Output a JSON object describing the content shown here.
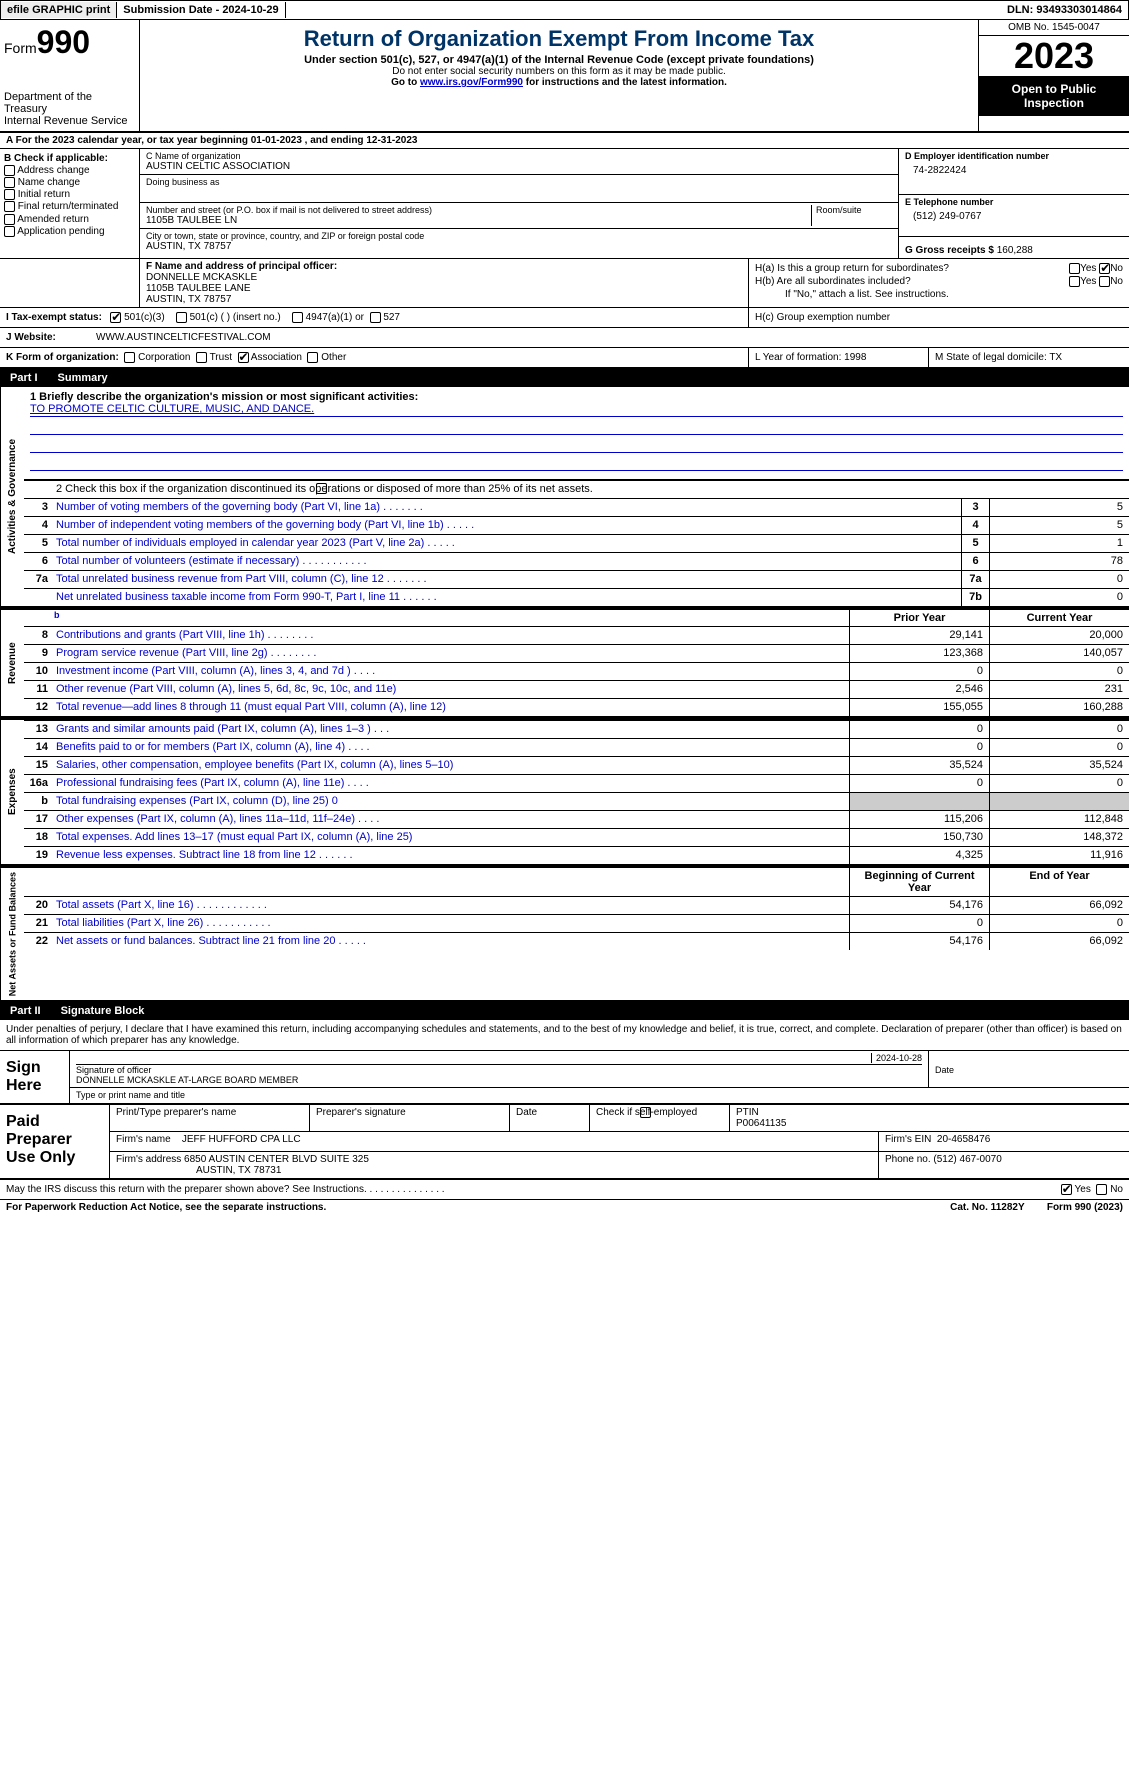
{
  "top": {
    "efile": "efile GRAPHIC print",
    "submission": "Submission Date - 2024-10-29",
    "dln": "DLN: 93493303014864"
  },
  "header": {
    "form_word": "Form",
    "form_num": "990",
    "dept": "Department of the Treasury",
    "irs": "Internal Revenue Service",
    "title": "Return of Organization Exempt From Income Tax",
    "subtitle": "Under section 501(c), 527, or 4947(a)(1) of the Internal Revenue Code (except private foundations)",
    "note1": "Do not enter social security numbers on this form as it may be made public.",
    "note2_pre": "Go to ",
    "note2_link": "www.irs.gov/Form990",
    "note2_post": " for instructions and the latest information.",
    "omb": "OMB No. 1545-0047",
    "year": "2023",
    "open": "Open to Public Inspection"
  },
  "row_a": "A  For the 2023 calendar year, or tax year beginning 01-01-2023    , and ending 12-31-2023",
  "box_b": {
    "label": "B Check if applicable:",
    "opts": [
      "Address change",
      "Name change",
      "Initial return",
      "Final return/terminated",
      "Amended return",
      "Application pending"
    ]
  },
  "box_c": {
    "name_label": "C Name of organization",
    "name": "AUSTIN CELTIC ASSOCIATION",
    "dba_label": "Doing business as",
    "addr_label": "Number and street (or P.O. box if mail is not delivered to street address)",
    "room_label": "Room/suite",
    "addr": "1105B TAULBEE LN",
    "city_label": "City or town, state or province, country, and ZIP or foreign postal code",
    "city": "AUSTIN, TX  78757"
  },
  "box_d": {
    "label": "D Employer identification number",
    "val": "74-2822424"
  },
  "box_e": {
    "label": "E Telephone number",
    "val": "(512) 249-0767"
  },
  "box_g": {
    "label": "G Gross receipts $",
    "val": "160,288"
  },
  "box_f": {
    "label": "F  Name and address of principal officer:",
    "name": "DONNELLE MCKASKLE",
    "addr1": "1105B TAULBEE LANE",
    "addr2": "AUSTIN, TX  78757"
  },
  "box_h": {
    "a": "H(a)  Is this a group return for subordinates?",
    "b": "H(b)  Are all subordinates included?",
    "note": "If \"No,\" attach a list. See instructions.",
    "c": "H(c)  Group exemption number",
    "yes": "Yes",
    "no": "No"
  },
  "box_i": {
    "label": "I     Tax-exempt status:",
    "o1": "501(c)(3)",
    "o2": "501(c) (   ) (insert no.)",
    "o3": "4947(a)(1) or",
    "o4": "527"
  },
  "box_j": {
    "label": "J     Website:",
    "val": "WWW.AUSTINCELTICFESTIVAL.COM"
  },
  "box_k": {
    "label": "K Form of organization:",
    "o1": "Corporation",
    "o2": "Trust",
    "o3": "Association",
    "o4": "Other"
  },
  "box_l": "L Year of formation: 1998",
  "box_m": "M State of legal domicile: TX",
  "part1": {
    "num": "Part I",
    "title": "Summary",
    "line1_label": "1   Briefly describe the organization's mission or most significant activities:",
    "line1_val": "TO PROMOTE CELTIC CULTURE, MUSIC, AND DANCE.",
    "line2": "2   Check this box        if the organization discontinued its operations or disposed of more than 25% of its net assets.",
    "vtab_ag": "Activities & Governance",
    "vtab_rev": "Revenue",
    "vtab_exp": "Expenses",
    "vtab_net": "Net Assets or Fund Balances",
    "header_prior": "Prior Year",
    "header_current": "Current Year",
    "header_boy": "Beginning of Current Year",
    "header_eoy": "End of Year",
    "rows_ag": [
      {
        "n": "3",
        "d": "Number of voting members of the governing body (Part VI, line 1a)   .    .    .    .    .    .    .",
        "box": "3",
        "v": "5"
      },
      {
        "n": "4",
        "d": "Number of independent voting members of the governing body (Part VI, line 1b)   .    .    .    .    .",
        "box": "4",
        "v": "5"
      },
      {
        "n": "5",
        "d": "Total number of individuals employed in calendar year 2023 (Part V, line 2a)   .    .    .    .    .",
        "box": "5",
        "v": "1"
      },
      {
        "n": "6",
        "d": "Total number of volunteers (estimate if necessary)   .    .    .    .    .    .    .    .    .    .    .",
        "box": "6",
        "v": "78"
      },
      {
        "n": "7a",
        "d": "Total unrelated business revenue from Part VIII, column (C), line 12   .    .    .    .    .    .    .",
        "box": "7a",
        "v": "0"
      },
      {
        "n": "",
        "d": "Net unrelated business taxable income from Form 990-T, Part I, line 11   .    .    .    .    .    .",
        "box": "7b",
        "v": "0"
      }
    ],
    "rows_rev": [
      {
        "n": "8",
        "d": "Contributions and grants (Part VIII, line 1h)   .    .    .    .    .    .    .    .",
        "p": "29,141",
        "c": "20,000"
      },
      {
        "n": "9",
        "d": "Program service revenue (Part VIII, line 2g)   .    .    .    .    .    .    .    .",
        "p": "123,368",
        "c": "140,057"
      },
      {
        "n": "10",
        "d": "Investment income (Part VIII, column (A), lines 3, 4, and 7d )   .    .    .    .",
        "p": "0",
        "c": "0"
      },
      {
        "n": "11",
        "d": "Other revenue (Part VIII, column (A), lines 5, 6d, 8c, 9c, 10c, and 11e)",
        "p": "2,546",
        "c": "231"
      },
      {
        "n": "12",
        "d": "Total revenue—add lines 8 through 11 (must equal Part VIII, column (A), line 12)",
        "p": "155,055",
        "c": "160,288"
      }
    ],
    "rows_exp": [
      {
        "n": "13",
        "d": "Grants and similar amounts paid (Part IX, column (A), lines 1–3 )   .    .    .",
        "p": "0",
        "c": "0"
      },
      {
        "n": "14",
        "d": "Benefits paid to or for members (Part IX, column (A), line 4)   .    .    .    .",
        "p": "0",
        "c": "0"
      },
      {
        "n": "15",
        "d": "Salaries, other compensation, employee benefits (Part IX, column (A), lines 5–10)",
        "p": "35,524",
        "c": "35,524"
      },
      {
        "n": "16a",
        "d": "Professional fundraising fees (Part IX, column (A), line 11e)   .    .    .    .",
        "p": "0",
        "c": "0"
      },
      {
        "n": "b",
        "d": "Total fundraising expenses (Part IX, column (D), line 25) 0",
        "p": "",
        "c": "",
        "grey": true
      },
      {
        "n": "17",
        "d": "Other expenses (Part IX, column (A), lines 11a–11d, 11f–24e)   .    .    .    .",
        "p": "115,206",
        "c": "112,848"
      },
      {
        "n": "18",
        "d": "Total expenses. Add lines 13–17 (must equal Part IX, column (A), line 25)",
        "p": "150,730",
        "c": "148,372"
      },
      {
        "n": "19",
        "d": "Revenue less expenses. Subtract line 18 from line 12   .    .    .    .    .    .",
        "p": "4,325",
        "c": "11,916"
      }
    ],
    "rows_net": [
      {
        "n": "20",
        "d": "Total assets (Part X, line 16)   .    .    .    .    .    .    .    .    .    .    .    .",
        "p": "54,176",
        "c": "66,092"
      },
      {
        "n": "21",
        "d": "Total liabilities (Part X, line 26)   .    .    .    .    .    .    .    .    .    .    .",
        "p": "0",
        "c": "0"
      },
      {
        "n": "22",
        "d": "Net assets or fund balances. Subtract line 21 from line 20   .    .    .    .    .",
        "p": "54,176",
        "c": "66,092"
      }
    ]
  },
  "part2": {
    "num": "Part II",
    "title": "Signature Block",
    "penalties": "Under penalties of perjury, I declare that I have examined this return, including accompanying schedules and statements, and to the best of my knowledge and belief, it is true, correct, and complete. Declaration of preparer (other than officer) is based on all information of which preparer has any knowledge.",
    "sign_here": "Sign Here",
    "sig_officer": "Signature of officer",
    "sig_name": "DONNELLE MCKASKLE  AT-LARGE BOARD MEMBER",
    "sig_type": "Type or print name and title",
    "date_label": "Date",
    "date_val": "2024-10-28",
    "paid": "Paid Preparer Use Only",
    "prep_name_label": "Print/Type preparer's name",
    "prep_sig_label": "Preparer's signature",
    "check_self": "Check         if self-employed",
    "ptin_label": "PTIN",
    "ptin": "P00641135",
    "firm_name_label": "Firm's name",
    "firm_name": "JEFF HUFFORD CPA LLC",
    "firm_ein_label": "Firm's EIN",
    "firm_ein": "20-4658476",
    "firm_addr_label": "Firm's address",
    "firm_addr1": "6850 AUSTIN CENTER BLVD SUITE 325",
    "firm_addr2": "AUSTIN, TX  78731",
    "phone_label": "Phone no.",
    "phone": "(512) 467-0070",
    "may_irs": "May the IRS discuss this return with the preparer shown above? See Instructions.    .    .    .    .    .    .    .    .    .    .    .    .    .    .",
    "yes": "Yes",
    "no": "No"
  },
  "footer": {
    "paperwork": "For Paperwork Reduction Act Notice, see the separate instructions.",
    "cat": "Cat. No. 11282Y",
    "form": "Form 990 (2023)"
  },
  "colors": {
    "link": "#0000cc",
    "title": "#003366"
  }
}
